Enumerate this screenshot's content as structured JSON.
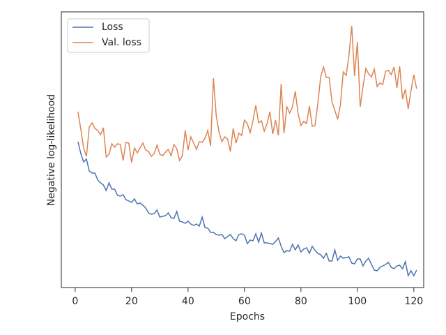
{
  "chart_data": {
    "type": "line",
    "xlabel": "Epochs",
    "ylabel": "Negative log-likelihood",
    "x": [
      1,
      2,
      3,
      4,
      5,
      6,
      7,
      8,
      9,
      10,
      11,
      12,
      13,
      14,
      15,
      16,
      17,
      18,
      19,
      20,
      21,
      22,
      23,
      24,
      25,
      26,
      27,
      28,
      29,
      30,
      31,
      32,
      33,
      34,
      35,
      36,
      37,
      38,
      39,
      40,
      41,
      42,
      43,
      44,
      45,
      46,
      47,
      48,
      49,
      50,
      51,
      52,
      53,
      54,
      55,
      56,
      57,
      58,
      59,
      60,
      61,
      62,
      63,
      64,
      65,
      66,
      67,
      68,
      69,
      70,
      71,
      72,
      73,
      74,
      75,
      76,
      77,
      78,
      79,
      80,
      81,
      82,
      83,
      84,
      85,
      86,
      87,
      88,
      89,
      90,
      91,
      92,
      93,
      94,
      95,
      96,
      97,
      98,
      99,
      100,
      101,
      102,
      103,
      104,
      105,
      106,
      107,
      108,
      109,
      110,
      111,
      112,
      113,
      114,
      115,
      116,
      117,
      118,
      119,
      120,
      121
    ],
    "series": [
      {
        "name": "Loss",
        "color": "#4c72b0",
        "values": [
          209,
          192,
          180,
          184,
          167,
          164,
          164,
          154,
          150,
          147,
          139,
          150,
          141,
          141,
          132,
          131,
          133,
          126,
          124,
          122,
          127,
          120,
          121,
          118,
          114,
          107,
          105,
          106,
          111,
          101,
          102,
          103,
          107,
          100,
          99,
          109,
          95,
          94,
          92,
          95,
          91,
          89,
          91,
          88,
          101,
          86,
          85,
          79,
          79,
          76,
          75,
          76,
          70,
          73,
          76,
          70,
          67,
          76,
          77,
          75,
          63,
          68,
          67,
          77,
          65,
          78,
          64,
          64,
          63,
          62,
          66,
          71,
          59,
          50,
          53,
          52,
          62,
          54,
          61,
          51,
          55,
          57,
          49,
          59,
          53,
          49,
          47,
          42,
          49,
          38,
          38,
          54,
          39,
          45,
          42,
          43,
          44,
          35,
          34,
          41,
          41,
          31,
          38,
          42,
          33,
          25,
          24,
          29,
          31,
          33,
          36,
          29,
          27,
          31,
          32,
          27,
          37,
          17,
          24,
          17,
          25
        ]
      },
      {
        "name": "Val. loss",
        "color": "#dd8452",
        "values": [
          252,
          227,
          200,
          188,
          230,
          236,
          228,
          225,
          219,
          229,
          187,
          191,
          206,
          201,
          206,
          205,
          182,
          208,
          207,
          179,
          200,
          193,
          200,
          207,
          197,
          195,
          188,
          192,
          204,
          191,
          189,
          194,
          198,
          189,
          205,
          199,
          182,
          189,
          225,
          197,
          216,
          207,
          198,
          209,
          208,
          214,
          225,
          203,
          300,
          246,
          222,
          209,
          216,
          213,
          195,
          228,
          207,
          221,
          218,
          240,
          235,
          222,
          239,
          261,
          236,
          239,
          224,
          235,
          252,
          220,
          240,
          218,
          292,
          221,
          259,
          250,
          259,
          281,
          249,
          232,
          238,
          235,
          260,
          231,
          232,
          264,
          302,
          316,
          301,
          301,
          266,
          254,
          241,
          262,
          309,
          304,
          332,
          375,
          303,
          352,
          259,
          288,
          314,
          306,
          302,
          313,
          288,
          293,
          291,
          310,
          311,
          305,
          316,
          286,
          317,
          270,
          284,
          256,
          282,
          305,
          285
        ]
      }
    ],
    "xlim": [
      -4.9,
      123.5
    ],
    "xticks": [
      0,
      20,
      40,
      60,
      80,
      100,
      120
    ],
    "ylim": [
      0,
      395
    ],
    "legend": "upper-left"
  }
}
